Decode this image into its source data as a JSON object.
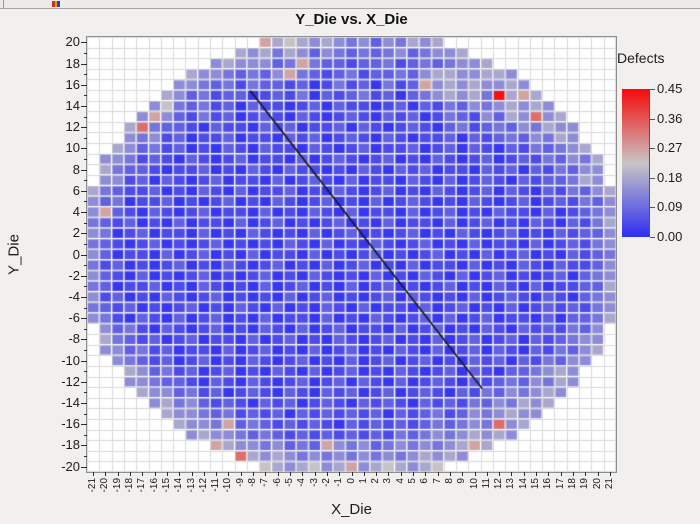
{
  "window": {
    "toolbar_icon": "window-icon"
  },
  "chart_data": {
    "type": "heatmap",
    "title": "Y_Die vs. X_Die",
    "xlabel": "X_Die",
    "ylabel": "Y_Die",
    "x_range": [
      -21,
      21
    ],
    "y_range": [
      -20,
      20
    ],
    "grid": true,
    "x_tick_labels": [
      "-21",
      "-20",
      "-19",
      "-18",
      "-17",
      "-16",
      "-15",
      "-14",
      "-13",
      "-12",
      "-11",
      "-10",
      "-9",
      "-8",
      "-7",
      "-6",
      "-5",
      "-4",
      "-3",
      "-2",
      "-1",
      "0",
      "1",
      "2",
      "3",
      "4",
      "5",
      "6",
      "7",
      "8",
      "9",
      "10",
      "11",
      "12",
      "13",
      "14",
      "15",
      "16",
      "17",
      "18",
      "19",
      "20",
      "21"
    ],
    "y_tick_labels": [
      "20",
      "18",
      "16",
      "14",
      "12",
      "10",
      "8",
      "6",
      "4",
      "2",
      "0",
      "-2",
      "-4",
      "-6",
      "-8",
      "-10",
      "-12",
      "-14",
      "-16",
      "-18",
      "-20"
    ],
    "legend": {
      "title": "Defects",
      "tick_labels": [
        "0.45",
        "0.36",
        "0.27",
        "0.18",
        "0.09",
        "0.00"
      ],
      "min": 0.0,
      "max": 0.45
    },
    "colormap": {
      "low": "#2d2df2",
      "mid": "#c9c5c6",
      "high": "#f60909",
      "mid_pos": 0.5
    },
    "bin_values": {
      "0": 0.015,
      "1": 0.045,
      "2": 0.075,
      "3": 0.105,
      "4": 0.14,
      "5": 0.18,
      "6": 0.22,
      "7": 0.265,
      "8": 0.33,
      "9": 0.44
    },
    "scratch_line": {
      "x1": -8.2,
      "y1": 15.4,
      "x2": 10.6,
      "y2": -12.6,
      "color": "#1a1a28"
    },
    "rows": [
      {
        "y": 20,
        "x0": -7,
        "cells": "756545434243545"
      },
      {
        "y": 19,
        "x0": -9,
        "cells": "5453542432323423445"
      },
      {
        "y": 18,
        "x0": -11,
        "cells": "45444237322122312323445"
      },
      {
        "y": 17,
        "x0": -13,
        "cells": "544323247321231223245544554"
      },
      {
        "y": 16,
        "x0": -14,
        "cells": "44323132212013120312745454454"
      },
      {
        "y": 15,
        "x0": -15,
        "cells": "5423122012130212312023454539575"
      },
      {
        "y": 14,
        "x0": -16,
        "cells": "463231202110120211012021324345454"
      },
      {
        "y": 13,
        "x0": -17,
        "cells": "47421312012102101210212013214254845"
      },
      {
        "y": 12,
        "x0": -18,
        "cells": "5832210211021201120210121023123243544"
      },
      {
        "y": 11,
        "x0": -18,
        "cells": "4341201120110212012102101120212324354"
      },
      {
        "y": 10,
        "x0": -19,
        "cells": "542312010210211021012011201202102132345"
      },
      {
        "y": 9,
        "x0": -20,
        "cells": "44312102101201102012101201021012012132435"
      },
      {
        "y": 8,
        "x0": -20,
        "cells": "53221011201021021101021021201102120213244"
      },
      {
        "y": 7,
        "x0": -20,
        "cells": "44120210120110201210201102102012102122354"
      },
      {
        "y": 6,
        "x0": -21,
        "cells": "5321120102102011201021012010210120210213245"
      },
      {
        "y": 5,
        "x0": -21,
        "cells": "4230112010120102101201020121010210120121324"
      },
      {
        "y": 4,
        "x0": -21,
        "cells": "4721021012011020102102011020120102110201234"
      },
      {
        "y": 3,
        "x0": -21,
        "cells": "3212010201102012010120102011020120102102135"
      },
      {
        "y": 2,
        "x0": -21,
        "cells": "4301201102010210102012010120102101201021224"
      },
      {
        "y": 1,
        "x0": -21,
        "cells": "3210120101201010210201021012010201102012134"
      },
      {
        "y": 0,
        "x0": -21,
        "cells": "4201102012010201102010120101201020120102123"
      },
      {
        "y": -1,
        "x0": -21,
        "cells": "3120101201021012010201201020110201021021124"
      },
      {
        "y": -2,
        "x0": -21,
        "cells": "4210201012010120102101020102102012010120234"
      },
      {
        "y": -3,
        "x0": -21,
        "cells": "3201120102101020120102012010120102102011225"
      },
      {
        "y": -4,
        "x0": -21,
        "cells": "4120102101201010201201012021010201210210234"
      },
      {
        "y": -5,
        "x0": -21,
        "cells": "3212010120102102010210201102012010201212134"
      },
      {
        "y": -6,
        "x0": -21,
        "cells": "4310210201201020110201021012020120110202235"
      },
      {
        "y": -7,
        "x0": -20,
        "cells": "42310210120102102012011020120102102121324"
      },
      {
        "y": -8,
        "x0": -20,
        "cells": "53212012011020120102101201020120120212344"
      },
      {
        "y": -9,
        "x0": -20,
        "cells": "44231201102012010201201021020120210213245"
      },
      {
        "y": -10,
        "x0": -19,
        "cells": "432120120102101201020120120102120213244"
      },
      {
        "y": -11,
        "x0": -18,
        "cells": "5423120120102102012010210120210223454"
      },
      {
        "y": -12,
        "x0": -18,
        "cells": "4432210210210120120210201210212324354"
      },
      {
        "y": -13,
        "x0": -17,
        "cells": "54423120121021021201201210213243454"
      },
      {
        "y": -14,
        "x0": -16,
        "cells": "453421210212012102121021213243545"
      },
      {
        "y": -15,
        "x0": -15,
        "cells": "5443231212021212120212312434544"
      },
      {
        "y": -16,
        "x0": -14,
        "cells": "54437232121210212121232343845"
      },
      {
        "y": -17,
        "x0": -13,
        "cells": "454432321212121213234345454"
      },
      {
        "y": -18,
        "x0": -11,
        "cells": "75443423274342343434575"
      },
      {
        "y": -19,
        "x0": -9,
        "cells": "8545434343434345454"
      },
      {
        "y": -20,
        "x0": -7,
        "cells": "654564574565456"
      }
    ]
  }
}
